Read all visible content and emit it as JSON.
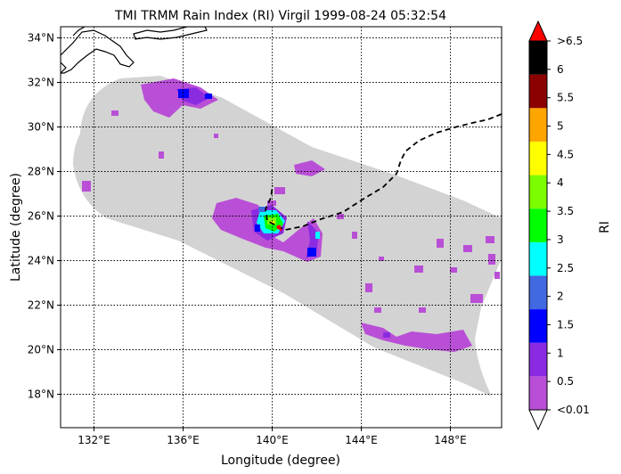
{
  "title": "TMI TRMM Rain Index (RI) Virgil 1999-08-24 05:32:54",
  "xlabel": "Longitude (degree)",
  "ylabel": "Latitude (degree)",
  "map": {
    "lon_range": [
      130.5,
      150.3
    ],
    "lat_range": [
      16.5,
      34.5
    ],
    "lon_ticks": [
      {
        "value": 132,
        "label": "132°E"
      },
      {
        "value": 136,
        "label": "136°E"
      },
      {
        "value": 140,
        "label": "140°E"
      },
      {
        "value": 144,
        "label": "144°E"
      },
      {
        "value": 148,
        "label": "148°E"
      }
    ],
    "lat_ticks": [
      {
        "value": 18,
        "label": "18°N"
      },
      {
        "value": 20,
        "label": "20°N"
      },
      {
        "value": 22,
        "label": "22°N"
      },
      {
        "value": 24,
        "label": "24°N"
      },
      {
        "value": 26,
        "label": "26°N"
      },
      {
        "value": 28,
        "label": "28°N"
      },
      {
        "value": 30,
        "label": "30°N"
      },
      {
        "value": 32,
        "label": "32°N"
      },
      {
        "value": 34,
        "label": "34°N"
      }
    ],
    "grid": "dotted",
    "swath_color": "#d3d3d3",
    "coast_color": "#000000",
    "track_color": "#000000",
    "storm_center": {
      "lon": 140.3,
      "lat": 25.5,
      "color": "#ff0000"
    }
  },
  "colorbar": {
    "label": "RI",
    "colors": [
      "#b94fd6",
      "#8a2be2",
      "#0000ff",
      "#4169e1",
      "#00ffff",
      "#00ff00",
      "#7cfc00",
      "#ffff00",
      "#ffa500",
      "#8b0000",
      "#000000"
    ],
    "under_color": "#ffffff",
    "over_color": "#ff0000",
    "tick_labels": [
      "<0.01",
      "0.5",
      "1",
      "1.5",
      "2",
      "2.5",
      "3",
      "3.5",
      "4",
      "4.5",
      "5",
      "5.5",
      "6",
      ">6.5"
    ]
  }
}
